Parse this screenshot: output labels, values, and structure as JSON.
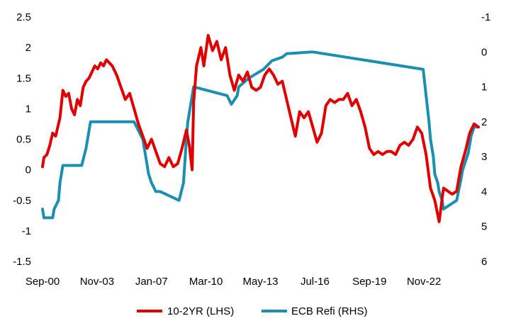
{
  "chart_data": {
    "type": "line",
    "title": "",
    "x_tick_labels": [
      "Sep-00",
      "Nov-03",
      "Jan-07",
      "Mar-10",
      "May-13",
      "Jul-16",
      "Sep-19",
      "Nov-22"
    ],
    "x_range": [
      "2000-09",
      "2025-09"
    ],
    "left_axis": {
      "ticks": [
        "2.5",
        "2",
        "1.5",
        "1",
        "0.5",
        "0",
        "-0.5",
        "-1",
        "-1.5"
      ],
      "range": [
        -1.5,
        2.5
      ]
    },
    "right_axis": {
      "ticks": [
        "-1",
        "0",
        "1",
        "2",
        "3",
        "4",
        "5",
        "6"
      ],
      "range": [
        -1,
        6
      ],
      "inverted": true
    },
    "legend_position": "bottom",
    "grid": false,
    "series": [
      {
        "name": "10-2YR (LHS)",
        "axis": "left",
        "color": "#e00000",
        "points": [
          [
            "2000-09",
            0.05
          ],
          [
            "2000-10",
            0.2
          ],
          [
            "2000-12",
            0.25
          ],
          [
            "2001-02",
            0.4
          ],
          [
            "2001-04",
            0.6
          ],
          [
            "2001-06",
            0.55
          ],
          [
            "2001-09",
            0.85
          ],
          [
            "2001-11",
            1.3
          ],
          [
            "2002-01",
            1.2
          ],
          [
            "2002-03",
            1.25
          ],
          [
            "2002-05",
            1.0
          ],
          [
            "2002-07",
            0.9
          ],
          [
            "2002-09",
            1.15
          ],
          [
            "2002-11",
            1.05
          ],
          [
            "2003-01",
            1.35
          ],
          [
            "2003-03",
            1.45
          ],
          [
            "2003-05",
            1.5
          ],
          [
            "2003-07",
            1.6
          ],
          [
            "2003-09",
            1.7
          ],
          [
            "2003-11",
            1.65
          ],
          [
            "2004-01",
            1.75
          ],
          [
            "2004-03",
            1.7
          ],
          [
            "2004-05",
            1.8
          ],
          [
            "2004-07",
            1.75
          ],
          [
            "2004-09",
            1.7
          ],
          [
            "2004-12",
            1.55
          ],
          [
            "2005-03",
            1.35
          ],
          [
            "2005-06",
            1.15
          ],
          [
            "2005-09",
            1.25
          ],
          [
            "2005-12",
            1.0
          ],
          [
            "2006-03",
            0.75
          ],
          [
            "2006-06",
            0.55
          ],
          [
            "2006-09",
            0.35
          ],
          [
            "2006-12",
            0.5
          ],
          [
            "2007-03",
            0.3
          ],
          [
            "2007-06",
            0.1
          ],
          [
            "2007-09",
            0.05
          ],
          [
            "2007-12",
            0.2
          ],
          [
            "2008-03",
            0.05
          ],
          [
            "2008-06",
            0.1
          ],
          [
            "2008-09",
            0.35
          ],
          [
            "2008-12",
            0.65
          ],
          [
            "2009-02",
            0.4
          ],
          [
            "2009-04",
            0.0
          ],
          [
            "2009-05",
            1.1
          ],
          [
            "2009-07",
            1.7
          ],
          [
            "2009-10",
            2.0
          ],
          [
            "2009-12",
            1.7
          ],
          [
            "2010-03",
            2.2
          ],
          [
            "2010-06",
            1.95
          ],
          [
            "2010-09",
            2.1
          ],
          [
            "2010-12",
            1.8
          ],
          [
            "2011-03",
            2.0
          ],
          [
            "2011-06",
            1.55
          ],
          [
            "2011-09",
            1.3
          ],
          [
            "2011-12",
            1.55
          ],
          [
            "2012-03",
            1.45
          ],
          [
            "2012-06",
            1.6
          ],
          [
            "2012-09",
            1.35
          ],
          [
            "2012-12",
            1.3
          ],
          [
            "2013-03",
            1.35
          ],
          [
            "2013-06",
            1.55
          ],
          [
            "2013-09",
            1.65
          ],
          [
            "2013-12",
            1.55
          ],
          [
            "2014-03",
            1.4
          ],
          [
            "2014-06",
            1.45
          ],
          [
            "2014-09",
            1.15
          ],
          [
            "2014-12",
            0.85
          ],
          [
            "2015-03",
            0.55
          ],
          [
            "2015-06",
            0.95
          ],
          [
            "2015-09",
            0.85
          ],
          [
            "2015-12",
            0.95
          ],
          [
            "2016-03",
            0.7
          ],
          [
            "2016-06",
            0.45
          ],
          [
            "2016-09",
            0.6
          ],
          [
            "2016-12",
            1.05
          ],
          [
            "2017-03",
            1.15
          ],
          [
            "2017-06",
            1.1
          ],
          [
            "2017-09",
            1.15
          ],
          [
            "2017-12",
            1.15
          ],
          [
            "2018-03",
            1.25
          ],
          [
            "2018-06",
            1.05
          ],
          [
            "2018-09",
            1.15
          ],
          [
            "2018-12",
            0.95
          ],
          [
            "2019-03",
            0.7
          ],
          [
            "2019-06",
            0.35
          ],
          [
            "2019-09",
            0.25
          ],
          [
            "2019-12",
            0.3
          ],
          [
            "2020-03",
            0.25
          ],
          [
            "2020-06",
            0.3
          ],
          [
            "2020-09",
            0.3
          ],
          [
            "2020-12",
            0.25
          ],
          [
            "2021-03",
            0.4
          ],
          [
            "2021-06",
            0.45
          ],
          [
            "2021-09",
            0.4
          ],
          [
            "2021-12",
            0.5
          ],
          [
            "2022-03",
            0.7
          ],
          [
            "2022-06",
            0.6
          ],
          [
            "2022-09",
            0.25
          ],
          [
            "2022-12",
            -0.3
          ],
          [
            "2023-03",
            -0.5
          ],
          [
            "2023-06",
            -0.85
          ],
          [
            "2023-09",
            -0.3
          ],
          [
            "2023-12",
            -0.35
          ],
          [
            "2024-03",
            -0.4
          ],
          [
            "2024-06",
            -0.35
          ],
          [
            "2024-09",
            0.05
          ],
          [
            "2024-12",
            0.3
          ],
          [
            "2025-03",
            0.6
          ],
          [
            "2025-06",
            0.75
          ],
          [
            "2025-09",
            0.7
          ]
        ]
      },
      {
        "name": "ECB Refi (RHS)",
        "axis": "right",
        "color": "#1a8fb0",
        "points": [
          [
            "2000-09",
            4.5
          ],
          [
            "2000-10",
            4.75
          ],
          [
            "2001-04",
            4.75
          ],
          [
            "2001-05",
            4.5
          ],
          [
            "2001-08",
            4.25
          ],
          [
            "2001-09",
            3.75
          ],
          [
            "2001-11",
            3.25
          ],
          [
            "2002-12",
            3.25
          ],
          [
            "2003-03",
            2.75
          ],
          [
            "2003-06",
            2.0
          ],
          [
            "2005-12",
            2.0
          ],
          [
            "2006-03",
            2.25
          ],
          [
            "2006-06",
            2.5
          ],
          [
            "2006-08",
            3.0
          ],
          [
            "2006-10",
            3.5
          ],
          [
            "2006-12",
            3.75
          ],
          [
            "2007-03",
            4.0
          ],
          [
            "2007-06",
            4.0
          ],
          [
            "2008-07",
            4.25
          ],
          [
            "2008-10",
            3.75
          ],
          [
            "2008-12",
            2.5
          ],
          [
            "2009-01",
            2.0
          ],
          [
            "2009-03",
            1.5
          ],
          [
            "2009-05",
            1.0
          ],
          [
            "2011-04",
            1.25
          ],
          [
            "2011-07",
            1.5
          ],
          [
            "2011-11",
            1.25
          ],
          [
            "2011-12",
            1.0
          ],
          [
            "2012-07",
            0.75
          ],
          [
            "2013-05",
            0.5
          ],
          [
            "2013-11",
            0.25
          ],
          [
            "2014-06",
            0.15
          ],
          [
            "2014-09",
            0.05
          ],
          [
            "2016-03",
            0.0
          ],
          [
            "2022-07",
            0.5
          ],
          [
            "2022-09",
            1.25
          ],
          [
            "2022-11",
            2.0
          ],
          [
            "2022-12",
            2.5
          ],
          [
            "2023-02",
            3.0
          ],
          [
            "2023-03",
            3.5
          ],
          [
            "2023-05",
            3.75
          ],
          [
            "2023-06",
            4.0
          ],
          [
            "2023-08",
            4.25
          ],
          [
            "2023-09",
            4.5
          ],
          [
            "2024-06",
            4.25
          ],
          [
            "2024-09",
            3.65
          ],
          [
            "2024-10",
            3.4
          ],
          [
            "2024-12",
            3.15
          ],
          [
            "2025-02",
            2.9
          ],
          [
            "2025-03",
            2.65
          ],
          [
            "2025-04",
            2.4
          ],
          [
            "2025-06",
            2.15
          ],
          [
            "2025-09",
            2.15
          ]
        ]
      }
    ]
  }
}
